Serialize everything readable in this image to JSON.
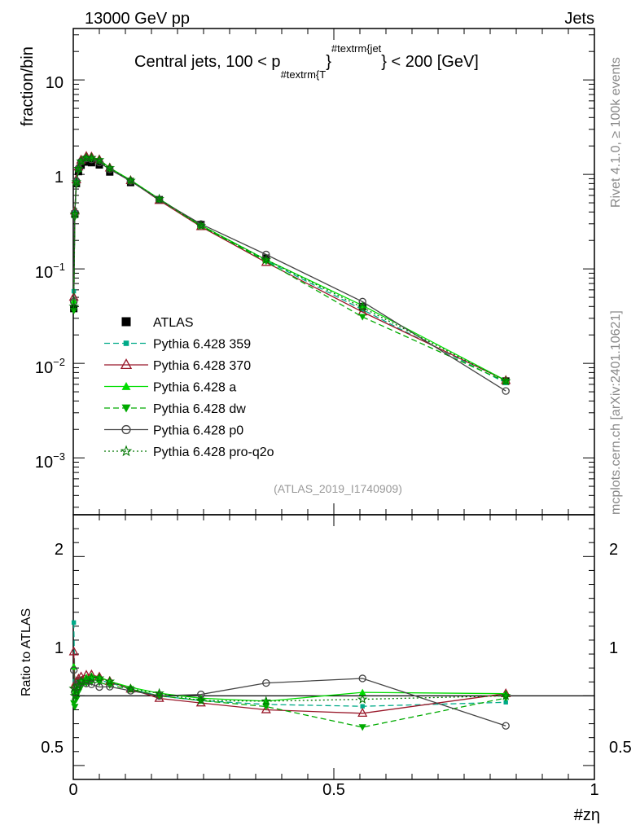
{
  "header": {
    "left": "13000 GeV pp",
    "right": "Jets"
  },
  "side_labels": {
    "rivet": "Rivet 4.1.0, ≥ 100k events",
    "mcplots": "mcplots.cern.ch [arXiv:2401.10621]"
  },
  "chart_data": {
    "type": "line",
    "title_prefix": "Central jets, 100 < p",
    "title_sub": "#textrm{T",
    "title_sup": "#textrm{jet",
    "title_brace": "}",
    "title_suffix": " < 200 [GeV]",
    "watermark": "(ATLAS_2019_I1740909)",
    "xlabel": "#zη",
    "ylabel_main": "fraction/bin",
    "ylabel_ratio": "Ratio to ATLAS",
    "xlim": [
      0,
      1
    ],
    "ylim_main": [
      0.00025,
      35
    ],
    "ylim_ratio": [
      0.4,
      2.3
    ],
    "x_tick_labels": [
      "0",
      "0.5",
      "1"
    ],
    "y_ticks_main": [
      {
        "base": "10",
        "exp": "−3"
      },
      {
        "base": "10",
        "exp": "−2"
      },
      {
        "base": "10",
        "exp": "−1"
      },
      {
        "base": "1",
        "exp": ""
      },
      {
        "base": "10",
        "exp": ""
      }
    ],
    "y_ticks_ratio": [
      "0.5",
      "1",
      "2"
    ],
    "x": [
      0.001,
      0.003,
      0.006,
      0.01,
      0.015,
      0.025,
      0.035,
      0.05,
      0.07,
      0.11,
      0.165,
      0.245,
      0.37,
      0.555,
      0.83
    ],
    "series": [
      {
        "name": "ATLAS",
        "color": "#000000",
        "marker": "square",
        "line": "none",
        "values": [
          0.038,
          0.38,
          0.8,
          1.07,
          1.25,
          1.35,
          1.33,
          1.26,
          1.06,
          0.82,
          0.54,
          0.295,
          0.13,
          0.04,
          0.0065
        ]
      },
      {
        "name": "Pythia 6.428 359",
        "color": "#00aa88",
        "marker": "square-small",
        "line": "dashed",
        "values": [
          0.058,
          0.42,
          0.88,
          1.2,
          1.4,
          1.5,
          1.48,
          1.4,
          1.16,
          0.86,
          0.54,
          0.285,
          0.122,
          0.037,
          0.0062
        ]
      },
      {
        "name": "Pythia 6.428 370",
        "color": "#99182a",
        "marker": "triangle-open",
        "line": "solid",
        "values": [
          0.05,
          0.41,
          0.88,
          1.2,
          1.42,
          1.55,
          1.53,
          1.43,
          1.17,
          0.86,
          0.53,
          0.28,
          0.117,
          0.035,
          0.0066
        ]
      },
      {
        "name": "Pythia 6.428 a",
        "color": "#00dd00",
        "marker": "triangle",
        "line": "solid",
        "values": [
          0.046,
          0.39,
          0.84,
          1.15,
          1.38,
          1.53,
          1.52,
          1.43,
          1.17,
          0.87,
          0.55,
          0.29,
          0.125,
          0.041,
          0.0066
        ]
      },
      {
        "name": "Pythia 6.428 dw",
        "color": "#00aa00",
        "marker": "triangle-down",
        "line": "dashed",
        "values": [
          0.036,
          0.35,
          0.78,
          1.1,
          1.33,
          1.47,
          1.46,
          1.38,
          1.14,
          0.86,
          0.54,
          0.285,
          0.12,
          0.031,
          0.0064
        ]
      },
      {
        "name": "Pythia 6.428 p0",
        "color": "#444444",
        "marker": "circle-open",
        "line": "solid",
        "values": [
          0.045,
          0.39,
          0.85,
          1.16,
          1.37,
          1.47,
          1.44,
          1.34,
          1.13,
          0.85,
          0.54,
          0.298,
          0.142,
          0.045,
          0.0051
        ]
      },
      {
        "name": "Pythia 6.428 pro-q2o",
        "color": "#007700",
        "marker": "star",
        "line": "dotted",
        "values": [
          0.04,
          0.38,
          0.83,
          1.15,
          1.38,
          1.5,
          1.5,
          1.42,
          1.17,
          0.86,
          0.55,
          0.285,
          0.125,
          0.039,
          0.0065
        ]
      }
    ],
    "legend_position": "middle-left"
  }
}
